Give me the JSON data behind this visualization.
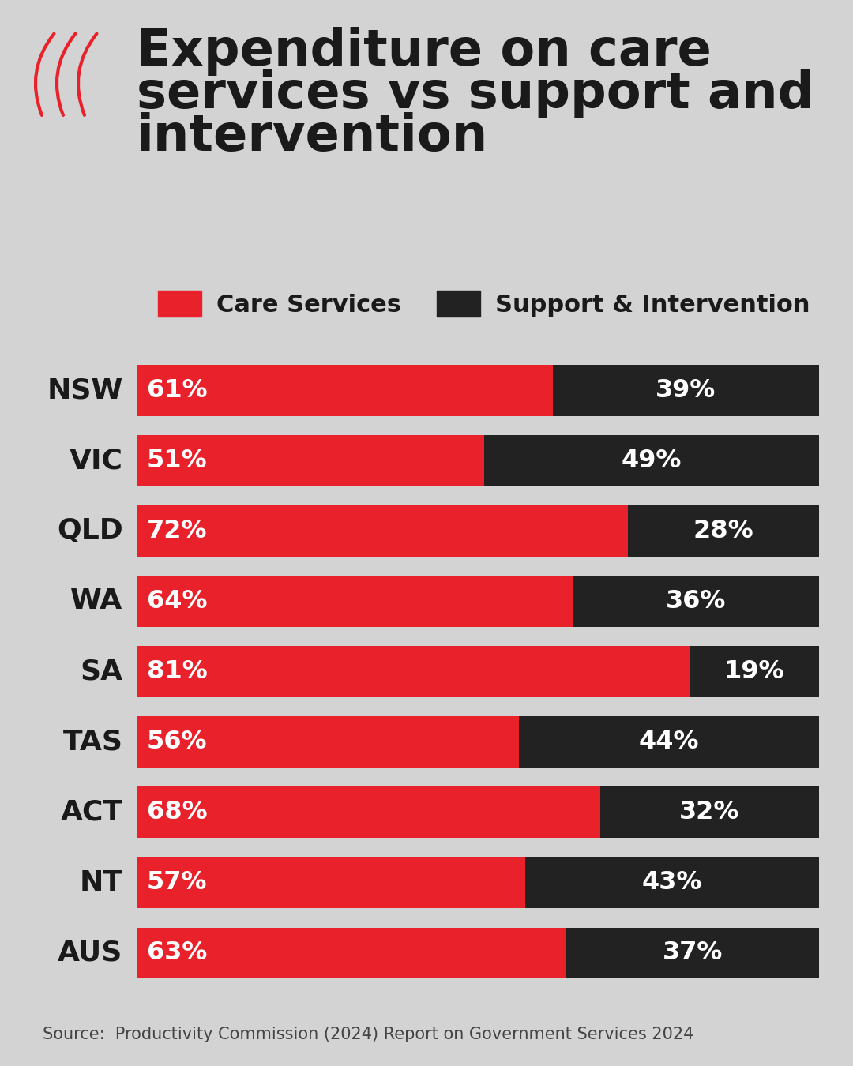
{
  "title_line1": "Expenditure on care",
  "title_line2": "services vs support and",
  "title_line3": "intervention",
  "source": "Source:  Productivity Commission (2024) Report on Government Services 2024",
  "legend_care": "Care Services",
  "legend_support": "Support & Intervention",
  "categories": [
    "NSW",
    "VIC",
    "QLD",
    "WA",
    "SA",
    "TAS",
    "ACT",
    "NT",
    "AUS"
  ],
  "care_values": [
    61,
    51,
    72,
    64,
    81,
    56,
    68,
    57,
    63
  ],
  "support_values": [
    39,
    49,
    28,
    36,
    19,
    44,
    32,
    43,
    37
  ],
  "color_care": "#e8212a",
  "color_support": "#222222",
  "background_color": "#d3d3d3",
  "bar_text_color": "#ffffff",
  "title_color": "#1a1a1a",
  "label_color": "#1a1a1a",
  "bar_height": 0.72,
  "title_fontsize": 46,
  "label_fontsize": 26,
  "bar_fontsize": 23,
  "legend_fontsize": 22,
  "source_fontsize": 15
}
